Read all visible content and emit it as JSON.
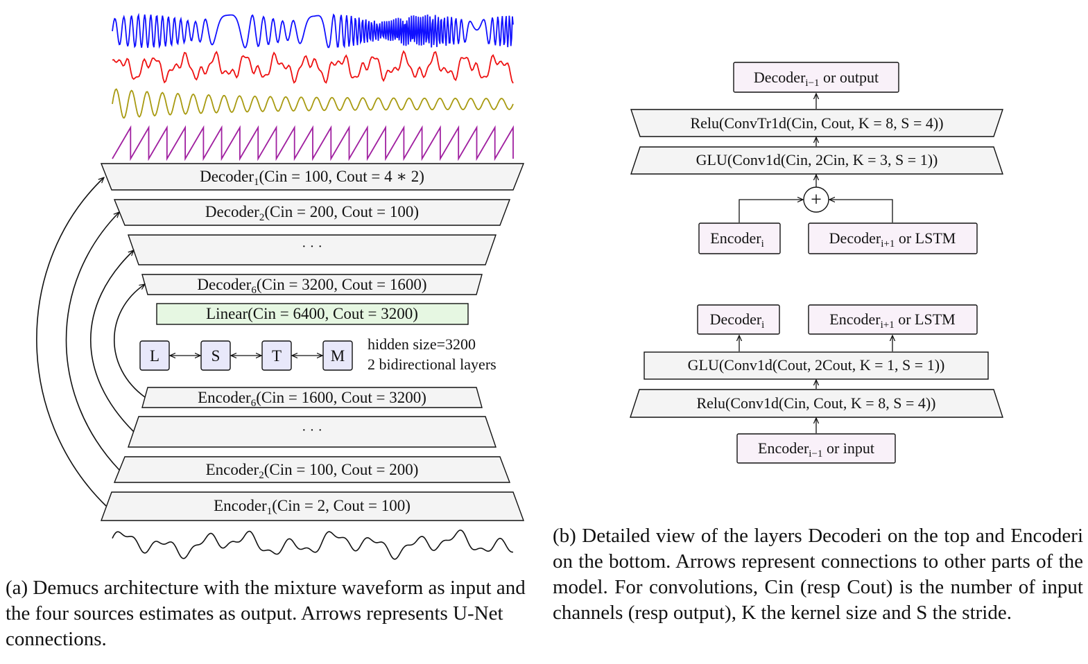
{
  "colors": {
    "wave_vocals": "#1010ff",
    "wave_drums": "#ee1111",
    "wave_bass": "#a89a10",
    "wave_other": "#a020a0",
    "layer_fill": "#f4f4f4",
    "linear_fill": "#e6f7e2",
    "lstm_fill": "#e8e8fa",
    "detail_box_fill": "#f9f1f9",
    "stroke": "#111111"
  },
  "panel_a": {
    "decoders": [
      {
        "name": "Decoder",
        "sub": "1",
        "params": "(Cin = 100, Cout = 4 ∗ 2)"
      },
      {
        "name": "Decoder",
        "sub": "2",
        "params": "(Cin = 200, Cout = 100)"
      },
      {
        "name": "",
        "sub": "",
        "params": "· · ·"
      },
      {
        "name": "Decoder",
        "sub": "6",
        "params": "(Cin = 3200, Cout = 1600)"
      }
    ],
    "linear": {
      "name": "Linear",
      "params": "(Cin = 6400, Cout = 3200)"
    },
    "lstm": {
      "cells": [
        "L",
        "S",
        "T",
        "M"
      ],
      "note_line1": "hidden size=3200",
      "note_line2": "2 bidirectional layers"
    },
    "encoders": [
      {
        "name": "Encoder",
        "sub": "6",
        "params": "(Cin = 1600, Cout = 3200)"
      },
      {
        "name": "",
        "sub": "",
        "params": "· · ·"
      },
      {
        "name": "Encoder",
        "sub": "2",
        "params": "(Cin = 100, Cout = 200)"
      },
      {
        "name": "Encoder",
        "sub": "1",
        "params": "(Cin = 2, Cout = 100)"
      }
    ],
    "caption": "(a) Demucs architecture with the mixture waveform as input and the four sources estimates as output. Arrows represents U-Net connections."
  },
  "panel_b": {
    "decoder_detail": {
      "output_box": "Decoderi−1 or output",
      "relu_convtr": "Relu(ConvTr1d(Cin, Cout, K = 8, S = 4))",
      "glu": "GLU(Conv1d(Cin, 2Cin, K = 3, S = 1))",
      "plus": "+",
      "encoder_input": "Encoderi",
      "decoder_input": "Decoderi+1 or LSTM"
    },
    "encoder_detail": {
      "decoder_output": "Decoderi",
      "encoder_output": "Encoderi+1 or LSTM",
      "glu": "GLU(Conv1d(Cout, 2Cout, K = 1, S = 1))",
      "relu_conv": "Relu(Conv1d(Cin, Cout, K = 8, S = 4))",
      "input_box": "Encoderi−1 or input"
    },
    "caption": "(b) Detailed view of the layers Decoderi on the top and Encoderi on the bottom. Arrows represent connections to other parts of the model. For convolutions, Cin (resp Cout) is the number of input channels (resp output), K the kernel size and S the stride."
  }
}
